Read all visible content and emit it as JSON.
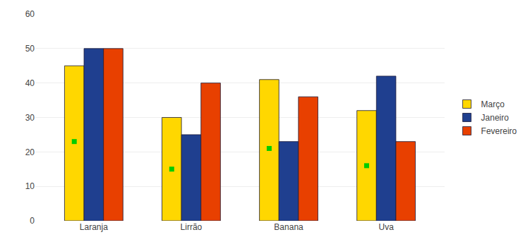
{
  "chart_data": {
    "type": "bar",
    "categories": [
      "Laranja",
      "Lirrão",
      "Banana",
      "Uva"
    ],
    "series": [
      {
        "name": "Março",
        "color": "#FFD700",
        "values": [
          45,
          30,
          41,
          32
        ]
      },
      {
        "name": "Janeiro",
        "color": "#1F3F8F",
        "values": [
          50,
          25,
          23,
          42
        ]
      },
      {
        "name": "Fevereiro",
        "color": "#E84000",
        "values": [
          50,
          40,
          36,
          23
        ]
      },
      {
        "type": "scatter",
        "marker": "square",
        "color": "#00CC00",
        "values": [
          23,
          15,
          21,
          16
        ]
      }
    ],
    "ylim": [
      0,
      60
    ],
    "yticks": [
      0,
      10,
      20,
      30,
      40,
      50,
      60
    ],
    "grid": true,
    "legend": "right"
  }
}
